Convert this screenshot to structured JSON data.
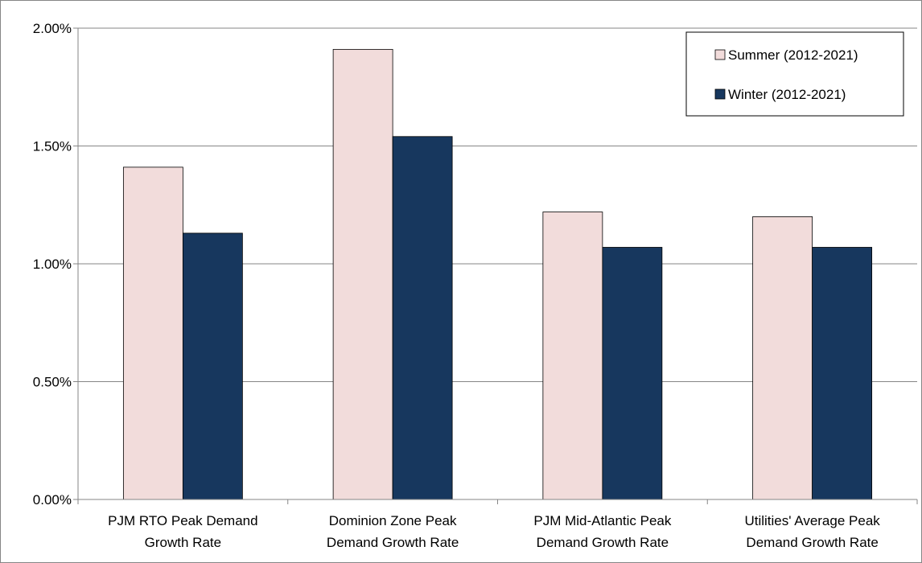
{
  "chart_data": {
    "type": "bar",
    "categories": [
      [
        "PJM RTO Peak Demand",
        "Growth Rate"
      ],
      [
        "Dominion Zone Peak",
        "Demand Growth Rate"
      ],
      [
        "PJM Mid-Atlantic  Peak",
        "Demand Growth Rate"
      ],
      [
        "Utilities' Average Peak",
        "Demand Growth Rate"
      ]
    ],
    "series": [
      {
        "name": "Summer (2012-2021)",
        "color": "#F2DCDB",
        "values": [
          1.41,
          1.91,
          1.22,
          1.2
        ]
      },
      {
        "name": "Winter (2012-2021)",
        "color": "#17375E",
        "values": [
          1.13,
          1.54,
          1.07,
          1.07
        ]
      }
    ],
    "ylim": [
      0,
      2
    ],
    "yticks": [
      0,
      0.5,
      1.0,
      1.5,
      2.0
    ],
    "ytick_labels": [
      "0.00%",
      "0.50%",
      "1.00%",
      "1.50%",
      "2.00%"
    ],
    "grid": true,
    "legend_position": "top-right",
    "title": "",
    "xlabel": "",
    "ylabel": ""
  }
}
